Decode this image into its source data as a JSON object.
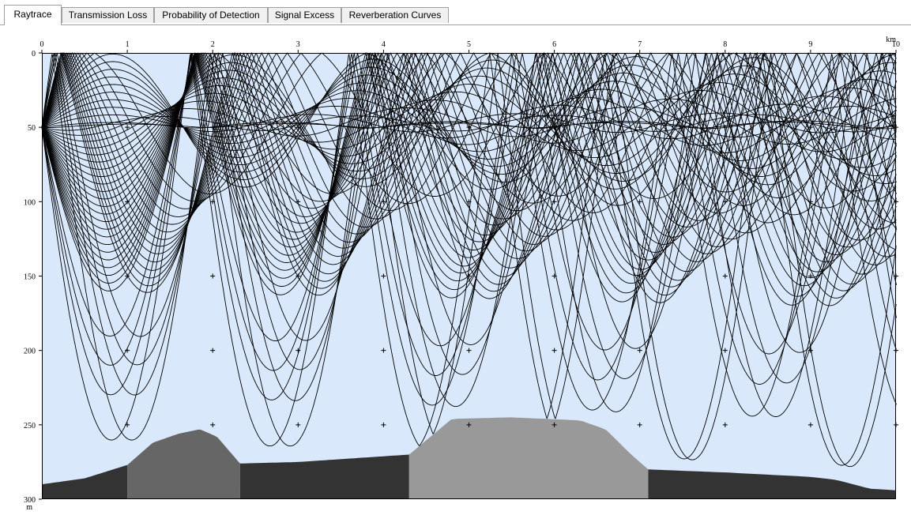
{
  "tabs": [
    {
      "label": "Raytrace",
      "active": true
    },
    {
      "label": "Transmission Loss",
      "active": false
    },
    {
      "label": "Probability of Detection",
      "active": false
    },
    {
      "label": "Signal Excess",
      "active": false
    },
    {
      "label": "Reverberation Curves",
      "active": false
    }
  ],
  "plot": {
    "x_unit": "km",
    "y_unit": "m",
    "x_ticks": [
      "0",
      "1",
      "2",
      "3",
      "4",
      "5",
      "6",
      "7",
      "8",
      "9",
      "10"
    ],
    "y_ticks": [
      "0",
      "50",
      "100",
      "150",
      "200",
      "250",
      "300"
    ],
    "colors": {
      "water": "#d9e8fb",
      "bottom_dark": "#333333",
      "bottom_mid": "#666666",
      "bottom_light": "#999999",
      "rays": "#000000"
    }
  },
  "chart_data": {
    "type": "raytrace",
    "x_range_km": [
      0,
      10
    ],
    "y_range_m": [
      0,
      300
    ],
    "source": {
      "range_km": 0,
      "depth_m": 50
    },
    "grid_markers": "plus signs at every 1 km / 50 m",
    "bottom_profile": [
      {
        "x": 0,
        "depth": 290
      },
      {
        "x": 0.5,
        "depth": 286
      },
      {
        "x": 1.0,
        "depth": 277
      },
      {
        "x": 1.3,
        "depth": 262
      },
      {
        "x": 1.6,
        "depth": 256
      },
      {
        "x": 1.85,
        "depth": 253
      },
      {
        "x": 2.05,
        "depth": 258
      },
      {
        "x": 2.2,
        "depth": 268
      },
      {
        "x": 2.32,
        "depth": 276
      },
      {
        "x": 3.0,
        "depth": 275
      },
      {
        "x": 4.3,
        "depth": 270
      },
      {
        "x": 4.55,
        "depth": 258
      },
      {
        "x": 4.8,
        "depth": 246
      },
      {
        "x": 5.5,
        "depth": 245
      },
      {
        "x": 6.3,
        "depth": 247
      },
      {
        "x": 6.6,
        "depth": 253
      },
      {
        "x": 6.9,
        "depth": 270
      },
      {
        "x": 7.1,
        "depth": 280
      },
      {
        "x": 8.0,
        "depth": 282
      },
      {
        "x": 9.0,
        "depth": 285
      },
      {
        "x": 9.3,
        "depth": 287
      },
      {
        "x": 9.7,
        "depth": 293
      },
      {
        "x": 10,
        "depth": 294
      }
    ],
    "bottom_types": [
      {
        "from_km": 0,
        "to_km": 1.0,
        "shade": "dark"
      },
      {
        "from_km": 1.0,
        "to_km": 2.32,
        "shade": "mid"
      },
      {
        "from_km": 2.32,
        "to_km": 4.3,
        "shade": "dark"
      },
      {
        "from_km": 4.3,
        "to_km": 7.1,
        "shade": "light"
      },
      {
        "from_km": 7.1,
        "to_km": 10,
        "shade": "dark"
      }
    ]
  }
}
